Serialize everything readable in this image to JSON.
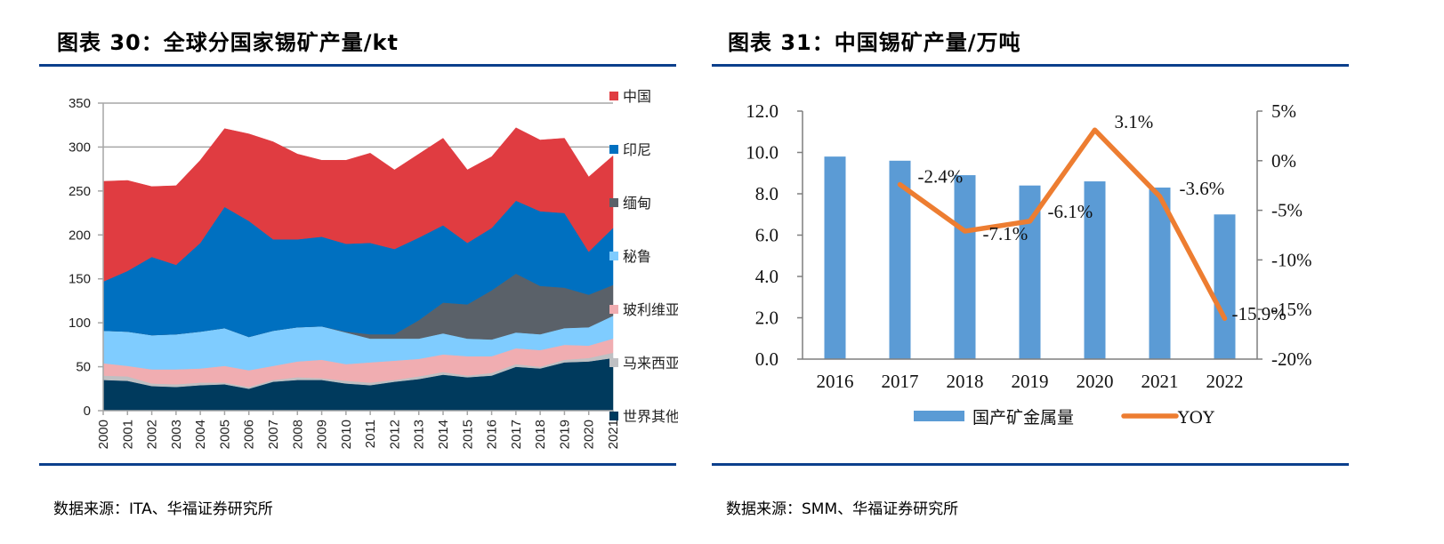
{
  "left": {
    "title": "图表 30：全球分国家锡矿产量/kt",
    "source": "数据来源：ITA、华福证券研究所"
  },
  "right": {
    "title": "图表 31：中国锡矿产量/万吨",
    "source": "数据来源：SMM、华福证券研究所"
  },
  "chart_data": [
    {
      "type": "area",
      "stacked": true,
      "title": "全球分国家锡矿产量/kt",
      "xlabel": "",
      "ylabel": "",
      "ylim": [
        0,
        350
      ],
      "yticks": [
        0,
        50,
        100,
        150,
        200,
        250,
        300,
        350
      ],
      "grid": "horizontal",
      "legend_position": "right",
      "x": [
        "2000",
        "2001",
        "2002",
        "2003",
        "2004",
        "2005",
        "2006",
        "2007",
        "2008",
        "2009",
        "2010",
        "2011",
        "2012",
        "2013",
        "2014",
        "2015",
        "2016",
        "2017",
        "2018",
        "2019",
        "2020",
        "2021"
      ],
      "series": [
        {
          "name": "世界其他",
          "legend_label": "世界其他",
          "color": "#003A5D",
          "values": [
            35,
            34,
            28,
            27,
            29,
            30,
            25,
            33,
            35,
            35,
            31,
            29,
            33,
            36,
            41,
            38,
            40,
            50,
            48,
            55,
            56,
            60
          ]
        },
        {
          "name": "马来西亚",
          "legend_label": "马来西亚",
          "color": "#BFC0C3",
          "values": [
            5,
            5,
            3,
            3,
            3,
            2,
            2,
            2,
            3,
            2,
            3,
            3,
            2,
            3,
            3,
            2,
            3,
            3,
            2,
            3,
            4,
            6
          ]
        },
        {
          "name": "玻利维亚",
          "legend_label": "玻利维亚",
          "color": "#F0ADB1",
          "values": [
            14,
            12,
            16,
            17,
            16,
            19,
            19,
            16,
            18,
            21,
            19,
            23,
            22,
            20,
            20,
            22,
            19,
            18,
            19,
            17,
            14,
            16
          ]
        },
        {
          "name": "秘鲁",
          "legend_label": "秘鲁",
          "color": "#7FCCFF",
          "values": [
            37,
            39,
            39,
            40,
            42,
            43,
            38,
            40,
            39,
            38,
            36,
            27,
            25,
            23,
            24,
            20,
            19,
            18,
            18,
            19,
            21,
            26
          ]
        },
        {
          "name": "缅甸",
          "legend_label": "缅甸",
          "color": "#5A6169",
          "values": [
            0,
            0,
            0,
            0,
            0,
            0,
            0,
            0,
            0,
            0,
            1,
            5,
            5,
            21,
            35,
            39,
            56,
            67,
            55,
            46,
            37,
            35
          ]
        },
        {
          "name": "印尼",
          "legend_label": "印尼",
          "color": "#0070C0",
          "values": [
            56,
            69,
            89,
            79,
            101,
            138,
            132,
            104,
            100,
            102,
            100,
            104,
            97,
            94,
            88,
            70,
            71,
            83,
            85,
            85,
            49,
            65
          ]
        },
        {
          "name": "中国",
          "legend_label": "中国",
          "color": "#E03C41",
          "values": [
            114,
            103,
            80,
            90,
            94,
            89,
            99,
            111,
            97,
            87,
            95,
            102,
            90,
            95,
            99,
            83,
            81,
            83,
            81,
            85,
            85,
            82
          ]
        }
      ],
      "legend_order": [
        "中国",
        "印尼",
        "缅甸",
        "秘鲁",
        "玻利维",
        "马来西",
        "世界其"
      ]
    },
    {
      "type": "bar+line",
      "title": "中国锡矿产量/万吨",
      "categories": [
        "2016",
        "2017",
        "2018",
        "2019",
        "2020",
        "2021",
        "2022"
      ],
      "series": [
        {
          "name": "国产矿金属量",
          "type": "bar",
          "axis": "left",
          "color": "#5B9BD5",
          "values": [
            9.8,
            9.6,
            8.9,
            8.4,
            8.6,
            8.3,
            7.0
          ]
        },
        {
          "name": "YOY",
          "type": "line",
          "axis": "right",
          "color": "#ED7D31",
          "x": [
            "2017",
            "2018",
            "2019",
            "2020",
            "2021",
            "2022"
          ],
          "values": [
            -2.4,
            -7.1,
            -6.1,
            3.1,
            -3.6,
            -15.9
          ],
          "data_labels": [
            "-2.4%",
            "-7.1%",
            "-6.1%",
            "3.1%",
            "-3.6%",
            "-15.9%"
          ]
        }
      ],
      "left_axis": {
        "ylim": [
          0,
          12
        ],
        "ticks": [
          "0.0",
          "2.0",
          "4.0",
          "6.0",
          "8.0",
          "10.0",
          "12.0"
        ]
      },
      "right_axis": {
        "ylim": [
          -20,
          5
        ],
        "ticks": [
          "-20%",
          "-15%",
          "-10%",
          "-5%",
          "0%",
          "5%"
        ]
      },
      "grid": false,
      "legend_position": "bottom"
    }
  ]
}
